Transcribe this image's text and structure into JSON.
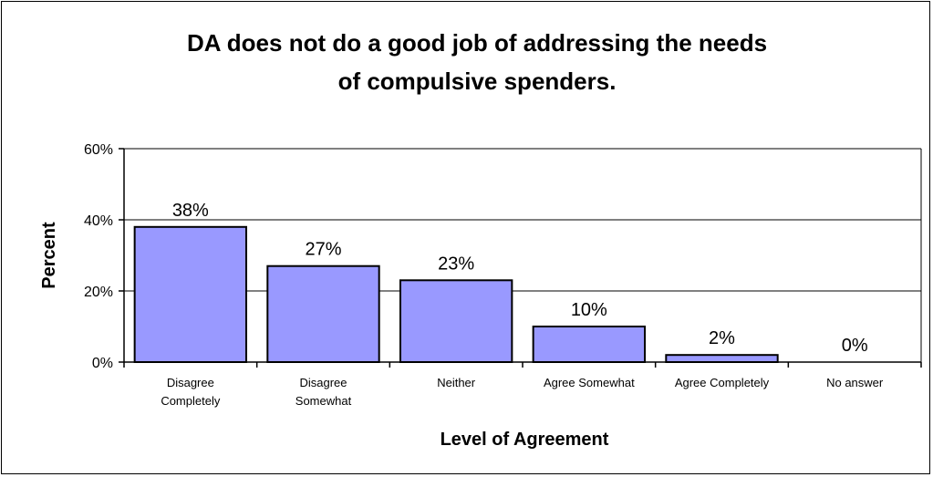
{
  "chart_data": {
    "type": "bar",
    "title_lines": [
      "DA does not do a good job of addressing the needs",
      "of compulsive spenders."
    ],
    "xlabel": "Level of Agreement",
    "ylabel": "Percent",
    "categories": [
      [
        "Disagree",
        "Completely"
      ],
      [
        "Disagree",
        "Somewhat"
      ],
      [
        "Neither"
      ],
      [
        "Agree Somewhat"
      ],
      [
        "Agree Completely"
      ],
      [
        "No answer"
      ]
    ],
    "values": [
      38,
      27,
      23,
      10,
      2,
      0
    ],
    "data_labels": [
      "38%",
      "27%",
      "23%",
      "10%",
      "2%",
      "0%"
    ],
    "ylim": [
      0,
      60
    ],
    "yticks": [
      0,
      20,
      40,
      60
    ],
    "ytick_labels": [
      "0%",
      "20%",
      "40%",
      "60%"
    ],
    "grid": true,
    "legend": "none",
    "colors": {
      "bar_fill": "#9999ff",
      "bar_stroke": "#000000",
      "grid": "#000000"
    }
  }
}
